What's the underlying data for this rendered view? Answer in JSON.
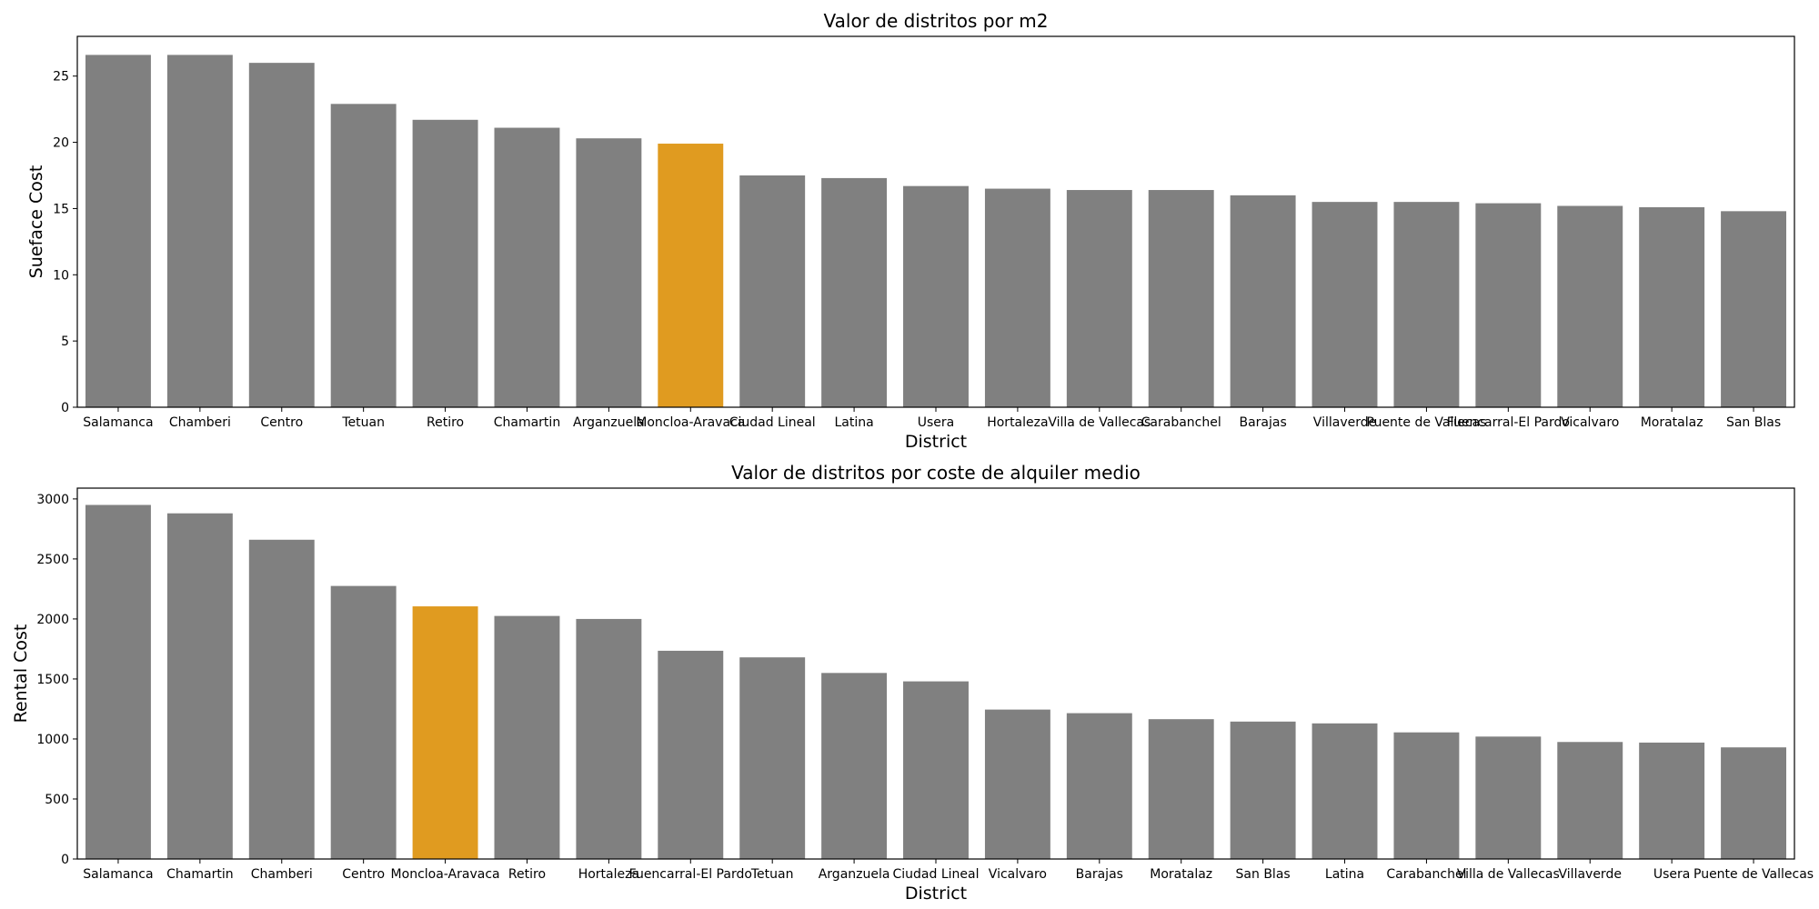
{
  "chart_data": [
    {
      "type": "bar",
      "title": "Valor de distritos por m2",
      "xlabel": "District",
      "ylabel": "Sueface Cost",
      "ylim": [
        0,
        28
      ],
      "yticks": [
        0,
        5,
        10,
        15,
        20,
        25
      ],
      "highlight": "Moncloa-Aravaca",
      "colors": {
        "default": "#808080",
        "highlight": "#e09b20"
      },
      "grid": false,
      "categories": [
        "Salamanca",
        "Chamberi",
        "Centro",
        "Tetuan",
        "Retiro",
        "Chamartin",
        "Arganzuela",
        "Moncloa-Aravaca",
        "Ciudad Lineal",
        "Latina",
        "Usera",
        "Hortaleza",
        "Villa de Vallecas",
        "Carabanchel",
        "Barajas",
        "Villaverde",
        "Puente de Vallecas",
        "Fuencarral-El Pardo",
        "Vicalvaro",
        "Moratalaz",
        "San Blas"
      ],
      "values": [
        26.6,
        26.6,
        26.0,
        22.9,
        21.7,
        21.1,
        20.3,
        19.9,
        17.5,
        17.3,
        16.7,
        16.5,
        16.4,
        16.4,
        16.0,
        15.5,
        15.5,
        15.4,
        15.2,
        15.1,
        14.8
      ]
    },
    {
      "type": "bar",
      "title": "Valor de distritos por coste de alquiler medio",
      "xlabel": "District",
      "ylabel": "Rental Cost",
      "ylim": [
        0,
        3090
      ],
      "yticks": [
        0,
        500,
        1000,
        1500,
        2000,
        2500,
        3000
      ],
      "highlight": "Moncloa-Aravaca",
      "colors": {
        "default": "#808080",
        "highlight": "#e09b20"
      },
      "grid": false,
      "categories": [
        "Salamanca",
        "Chamartin",
        "Chamberi",
        "Centro",
        "Moncloa-Aravaca",
        "Retiro",
        "Hortaleza",
        "Fuencarral-El Pardo",
        "Tetuan",
        "Arganzuela",
        "Ciudad Lineal",
        "Vicalvaro",
        "Barajas",
        "Moratalaz",
        "San Blas",
        "Latina",
        "Carabanchel",
        "Villa de Vallecas",
        "Villaverde",
        "Usera",
        "Puente de Vallecas"
      ],
      "values": [
        2950,
        2880,
        2660,
        2275,
        2105,
        2025,
        2000,
        1735,
        1680,
        1550,
        1480,
        1245,
        1215,
        1165,
        1145,
        1130,
        1055,
        1020,
        975,
        970,
        930
      ]
    }
  ]
}
